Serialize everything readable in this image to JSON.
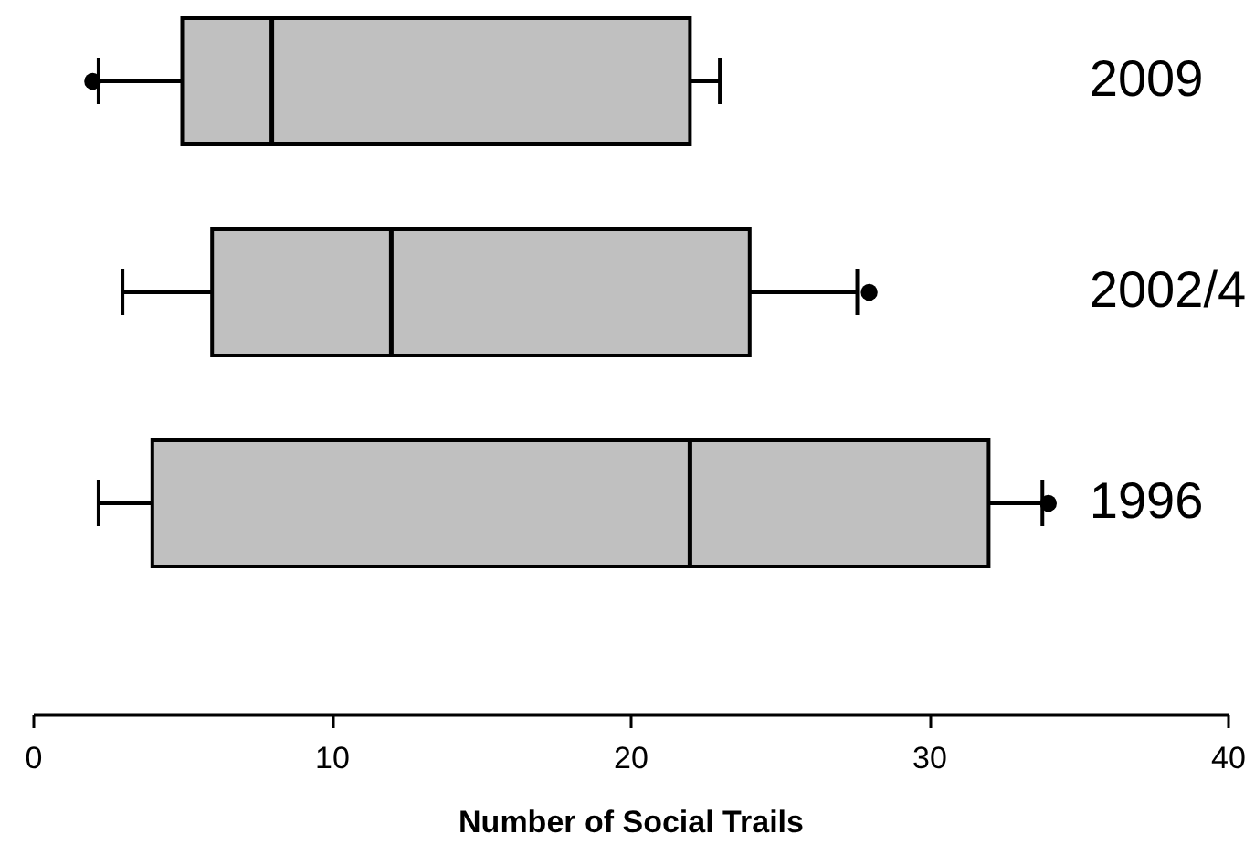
{
  "chart_data": {
    "type": "box",
    "orientation": "horizontal",
    "categories": [
      "2009",
      "2002/4",
      "1996"
    ],
    "boxes": [
      {
        "low": 2.2,
        "q1": 5,
        "median": 8,
        "q3": 22,
        "high": 23,
        "outliers": [
          2
        ]
      },
      {
        "low": 3,
        "q1": 6,
        "median": 12,
        "q3": 24,
        "high": 27.6,
        "outliers": [
          28
        ]
      },
      {
        "low": 2.2,
        "q1": 4,
        "median": 22,
        "q3": 32,
        "high": 33.8,
        "outliers": [
          34
        ]
      }
    ],
    "color": "#c0c0c0",
    "xlabel": "Number of Social Trails",
    "xlim": [
      0,
      40
    ],
    "xticks": [
      0,
      10,
      20,
      30,
      40
    ]
  }
}
